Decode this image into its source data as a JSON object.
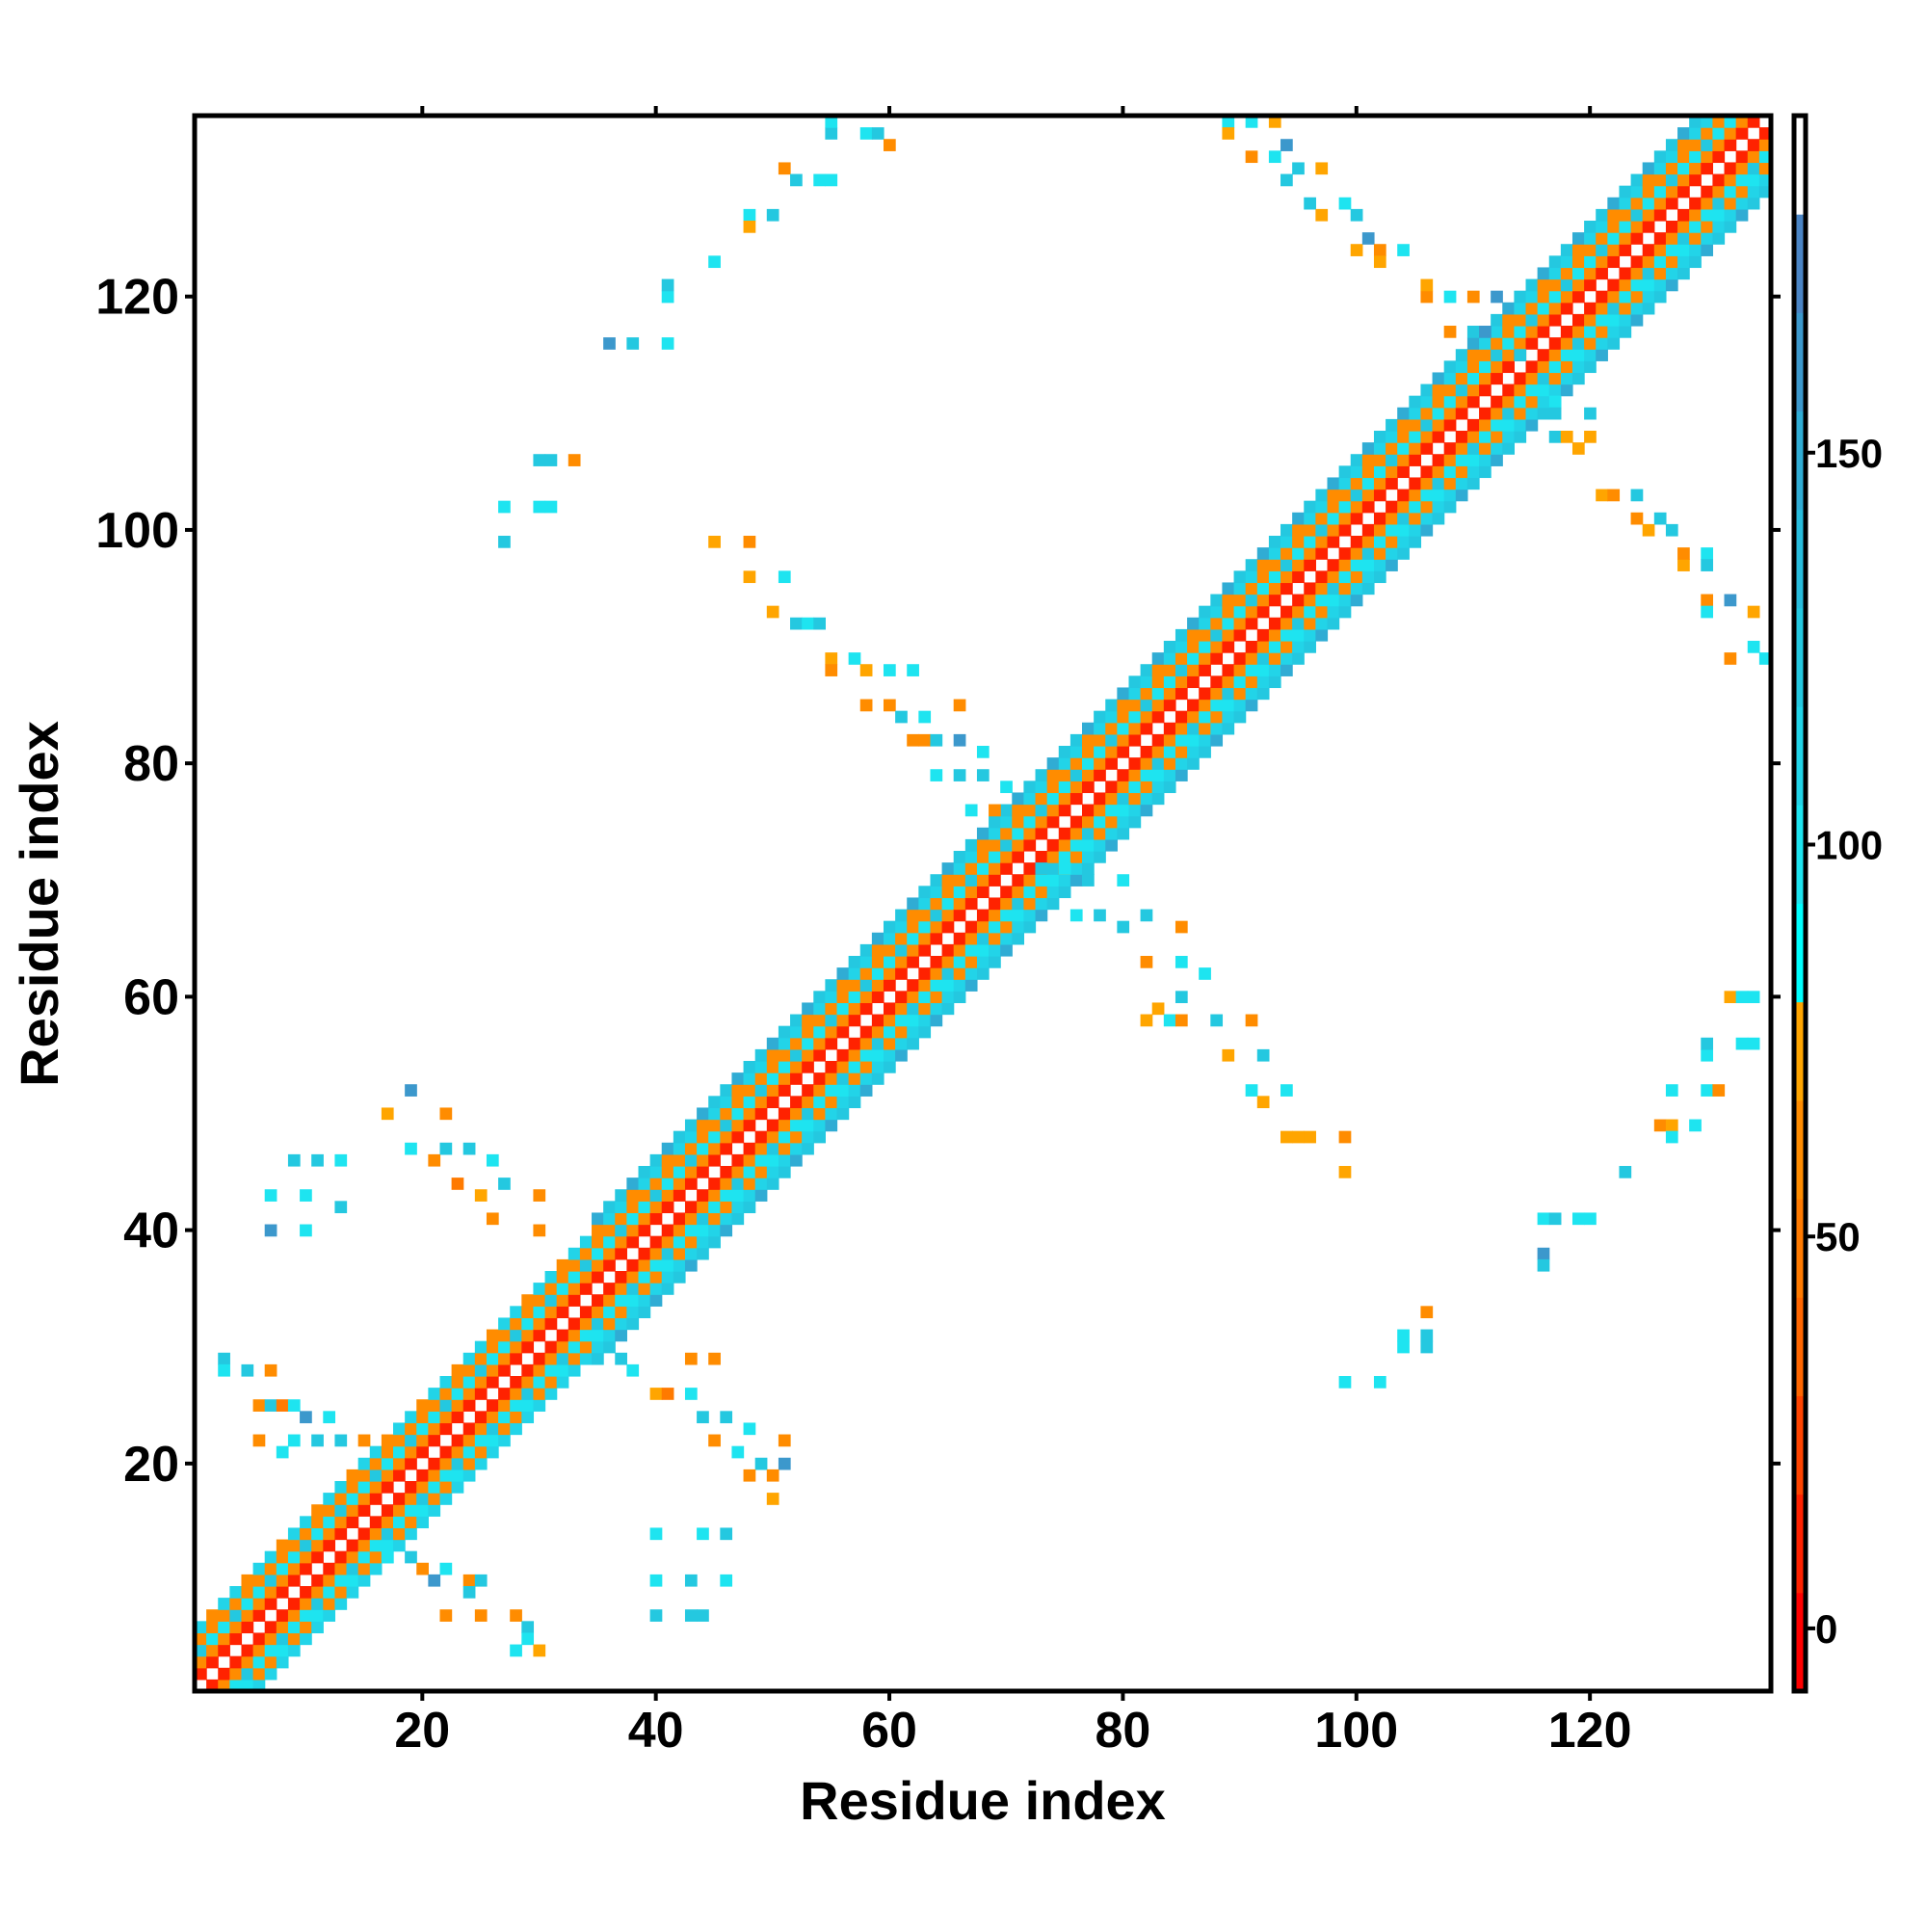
{
  "chart_data": {
    "type": "heatmap",
    "title": "",
    "xlabel": "Residue index",
    "ylabel": "Residue index",
    "xlim": [
      0.5,
      135.5
    ],
    "ylim": [
      0.5,
      135.5
    ],
    "n_residues": 135,
    "x_ticks": [
      20,
      40,
      60,
      80,
      100,
      120
    ],
    "y_ticks": [
      20,
      40,
      60,
      80,
      100,
      120
    ],
    "colorbar": {
      "range": [
        -8,
        193
      ],
      "ticks": [
        0,
        50,
        100,
        150
      ],
      "colors": [
        "#ff0000",
        "#ff2200",
        "#ff4400",
        "#ff6600",
        "#ff7a00",
        "#ff8c00",
        "#ffa500",
        "#00ffff",
        "#1ee4f0",
        "#22d4e8",
        "#24c8e0",
        "#28bcdc",
        "#30acd4",
        "#3c98cc",
        "#4a84c4",
        "#ffffff"
      ]
    },
    "diagonal_band": {
      "offset_values": [
        193,
        15,
        55,
        100,
        65,
        110,
        125
      ],
      "segments": [
        {
          "from": 1,
          "to": 34,
          "max_offset": 5
        },
        {
          "from": 35,
          "to": 135,
          "max_offset": 6
        }
      ]
    },
    "contacts": [
      [
        19,
        52,
        165
      ],
      [
        17,
        50,
        70
      ],
      [
        22,
        50,
        55
      ],
      [
        19,
        47,
        100
      ],
      [
        21,
        46,
        65
      ],
      [
        22,
        47,
        130
      ],
      [
        24,
        47,
        130
      ],
      [
        26,
        46,
        100
      ],
      [
        23,
        44,
        50
      ],
      [
        25,
        43,
        70
      ],
      [
        27,
        44,
        130
      ],
      [
        30,
        43,
        55
      ],
      [
        26,
        41,
        65
      ],
      [
        30,
        40,
        55
      ],
      [
        7,
        43,
        100
      ],
      [
        10,
        43,
        100
      ],
      [
        13,
        42,
        130
      ],
      [
        9,
        46,
        130
      ],
      [
        11,
        46,
        130
      ],
      [
        13,
        46,
        100
      ],
      [
        7,
        40,
        165
      ],
      [
        10,
        40,
        100
      ],
      [
        3,
        29,
        130
      ],
      [
        3,
        28,
        100
      ],
      [
        5,
        28,
        130
      ],
      [
        7,
        28,
        65
      ],
      [
        6,
        25,
        65
      ],
      [
        7,
        25,
        130
      ],
      [
        8,
        25,
        50
      ],
      [
        9,
        25,
        100
      ],
      [
        10,
        24,
        165
      ],
      [
        12,
        24,
        100
      ],
      [
        9,
        22,
        100
      ],
      [
        11,
        22,
        130
      ],
      [
        13,
        22,
        130
      ],
      [
        15,
        22,
        65
      ],
      [
        6,
        22,
        55
      ],
      [
        8,
        21,
        100
      ],
      [
        17,
        12,
        100
      ],
      [
        19,
        12,
        130
      ],
      [
        20,
        11,
        65
      ],
      [
        22,
        11,
        100
      ],
      [
        21,
        10,
        165
      ],
      [
        24,
        10,
        65
      ],
      [
        25,
        10,
        130
      ],
      [
        24,
        9,
        130
      ],
      [
        22,
        7,
        55
      ],
      [
        25,
        7,
        65
      ],
      [
        28,
        7,
        55
      ],
      [
        29,
        6,
        130
      ],
      [
        29,
        5,
        100
      ],
      [
        28,
        4,
        100
      ],
      [
        30,
        4,
        70
      ],
      [
        40,
        26,
        70
      ],
      [
        41,
        26,
        50
      ],
      [
        43,
        26,
        100
      ],
      [
        44,
        24,
        130
      ],
      [
        46,
        24,
        130
      ],
      [
        48,
        23,
        100
      ],
      [
        51,
        22,
        65
      ],
      [
        45,
        22,
        65
      ],
      [
        47,
        21,
        100
      ],
      [
        49,
        20,
        130
      ],
      [
        51,
        20,
        165
      ],
      [
        48,
        19,
        65
      ],
      [
        50,
        19,
        55
      ],
      [
        50,
        17,
        70
      ],
      [
        43,
        29,
        65
      ],
      [
        45,
        29,
        55
      ],
      [
        37,
        29,
        130
      ],
      [
        38,
        28,
        100
      ],
      [
        40,
        14,
        100
      ],
      [
        44,
        14,
        100
      ],
      [
        46,
        14,
        130
      ],
      [
        40,
        10,
        100
      ],
      [
        43,
        10,
        130
      ],
      [
        46,
        10,
        100
      ],
      [
        40,
        7,
        130
      ],
      [
        43,
        7,
        130
      ],
      [
        44,
        7,
        130
      ],
      [
        27,
        102,
        100
      ],
      [
        27,
        99,
        130
      ],
      [
        30,
        102,
        100
      ],
      [
        31,
        102,
        100
      ],
      [
        30,
        106,
        130
      ],
      [
        31,
        106,
        130
      ],
      [
        33,
        106,
        55
      ],
      [
        36,
        116,
        165
      ],
      [
        38,
        116,
        130
      ],
      [
        41,
        116,
        100
      ],
      [
        41,
        120,
        100
      ],
      [
        41,
        121,
        130
      ],
      [
        45,
        123,
        100
      ],
      [
        48,
        127,
        100
      ],
      [
        48,
        126,
        70
      ],
      [
        50,
        127,
        130
      ],
      [
        51,
        131,
        55
      ],
      [
        52,
        130,
        130
      ],
      [
        54,
        130,
        100
      ],
      [
        55,
        130,
        100
      ],
      [
        55,
        134,
        130
      ],
      [
        55,
        135,
        100
      ],
      [
        58,
        134,
        100
      ],
      [
        59,
        134,
        130
      ],
      [
        60,
        133,
        55
      ],
      [
        45,
        99,
        70
      ],
      [
        48,
        99,
        55
      ],
      [
        48,
        96,
        70
      ],
      [
        51,
        96,
        100
      ],
      [
        50,
        93,
        70
      ],
      [
        52,
        92,
        130
      ],
      [
        53,
        92,
        100
      ],
      [
        54,
        92,
        130
      ],
      [
        55,
        89,
        70
      ],
      [
        55,
        88,
        65
      ],
      [
        57,
        89,
        100
      ],
      [
        58,
        88,
        70
      ],
      [
        60,
        88,
        100
      ],
      [
        62,
        88,
        100
      ],
      [
        58,
        85,
        65
      ],
      [
        60,
        85,
        55
      ],
      [
        61,
        84,
        130
      ],
      [
        63,
        84,
        100
      ],
      [
        66,
        85,
        65
      ],
      [
        62,
        82,
        65
      ],
      [
        63,
        82,
        55
      ],
      [
        64,
        82,
        130
      ],
      [
        66,
        82,
        165
      ],
      [
        68,
        81,
        100
      ],
      [
        64,
        79,
        100
      ],
      [
        66,
        79,
        130
      ],
      [
        68,
        79,
        130
      ],
      [
        70,
        78,
        100
      ],
      [
        67,
        76,
        100
      ],
      [
        69,
        76,
        65
      ],
      [
        73,
        71,
        130
      ],
      [
        75,
        71,
        100
      ],
      [
        77,
        70,
        130
      ],
      [
        80,
        70,
        100
      ],
      [
        76,
        67,
        100
      ],
      [
        78,
        67,
        130
      ],
      [
        80,
        66,
        130
      ],
      [
        82,
        67,
        130
      ],
      [
        85,
        66,
        65
      ],
      [
        82,
        63,
        65
      ],
      [
        85,
        63,
        100
      ],
      [
        87,
        62,
        100
      ],
      [
        85,
        60,
        130
      ],
      [
        83,
        59,
        70
      ],
      [
        82,
        58,
        70
      ],
      [
        84,
        58,
        100
      ],
      [
        85,
        58,
        65
      ],
      [
        88,
        58,
        130
      ],
      [
        91,
        58,
        65
      ],
      [
        89,
        55,
        70
      ],
      [
        92,
        55,
        130
      ],
      [
        91,
        52,
        100
      ],
      [
        92,
        51,
        70
      ],
      [
        94,
        52,
        100
      ],
      [
        94,
        48,
        70
      ],
      [
        95,
        48,
        70
      ],
      [
        96,
        48,
        70
      ],
      [
        99,
        48,
        65
      ],
      [
        99,
        45,
        70
      ],
      [
        89,
        135,
        100
      ],
      [
        89,
        134,
        70
      ],
      [
        91,
        135,
        100
      ],
      [
        93,
        135,
        70
      ],
      [
        91,
        132,
        55
      ],
      [
        93,
        132,
        100
      ],
      [
        94,
        133,
        165
      ],
      [
        95,
        131,
        130
      ],
      [
        97,
        131,
        70
      ],
      [
        94,
        130,
        130
      ],
      [
        96,
        128,
        130
      ],
      [
        97,
        127,
        70
      ],
      [
        99,
        128,
        100
      ],
      [
        100,
        124,
        70
      ],
      [
        100,
        127,
        130
      ],
      [
        101,
        125,
        165
      ],
      [
        102,
        124,
        55
      ],
      [
        104,
        124,
        100
      ],
      [
        102,
        123,
        70
      ],
      [
        106,
        120,
        55
      ],
      [
        106,
        121,
        70
      ],
      [
        108,
        120,
        100
      ],
      [
        110,
        120,
        55
      ],
      [
        112,
        120,
        165
      ],
      [
        108,
        117,
        65
      ],
      [
        110,
        117,
        130
      ],
      [
        111,
        117,
        165
      ],
      [
        114,
        115,
        130
      ],
      [
        117,
        111,
        100
      ],
      [
        117,
        110,
        130
      ],
      [
        120,
        110,
        130
      ],
      [
        117,
        108,
        130
      ],
      [
        118,
        108,
        70
      ],
      [
        120,
        108,
        70
      ],
      [
        119,
        107,
        70
      ],
      [
        121,
        103,
        70
      ],
      [
        122,
        103,
        65
      ],
      [
        124,
        103,
        130
      ],
      [
        124,
        101,
        65
      ],
      [
        125,
        100,
        70
      ],
      [
        126,
        101,
        130
      ],
      [
        127,
        100,
        130
      ],
      [
        128,
        97,
        70
      ],
      [
        128,
        98,
        65
      ],
      [
        130,
        98,
        100
      ],
      [
        130,
        97,
        130
      ],
      [
        130,
        94,
        65
      ],
      [
        130,
        93,
        100
      ],
      [
        132,
        94,
        165
      ],
      [
        134,
        93,
        70
      ],
      [
        134,
        90,
        100
      ],
      [
        132,
        89,
        65
      ],
      [
        135,
        89,
        100
      ],
      [
        116,
        41,
        100
      ],
      [
        117,
        41,
        130
      ],
      [
        119,
        41,
        100
      ],
      [
        120,
        41,
        100
      ],
      [
        116,
        38,
        165
      ],
      [
        116,
        37,
        130
      ],
      [
        123,
        45,
        130
      ],
      [
        126,
        49,
        65
      ],
      [
        127,
        49,
        70
      ],
      [
        127,
        48,
        100
      ],
      [
        129,
        49,
        100
      ],
      [
        127,
        52,
        100
      ],
      [
        130,
        52,
        100
      ],
      [
        131,
        52,
        65
      ],
      [
        130,
        55,
        100
      ],
      [
        130,
        56,
        130
      ],
      [
        133,
        56,
        100
      ],
      [
        134,
        56,
        100
      ],
      [
        132,
        60,
        70
      ],
      [
        133,
        60,
        100
      ],
      [
        134,
        60,
        100
      ],
      [
        106,
        33,
        55
      ],
      [
        104,
        31,
        100
      ],
      [
        104,
        30,
        100
      ],
      [
        106,
        30,
        130
      ],
      [
        106,
        31,
        130
      ],
      [
        102,
        27,
        100
      ],
      [
        99,
        27,
        100
      ]
    ]
  }
}
